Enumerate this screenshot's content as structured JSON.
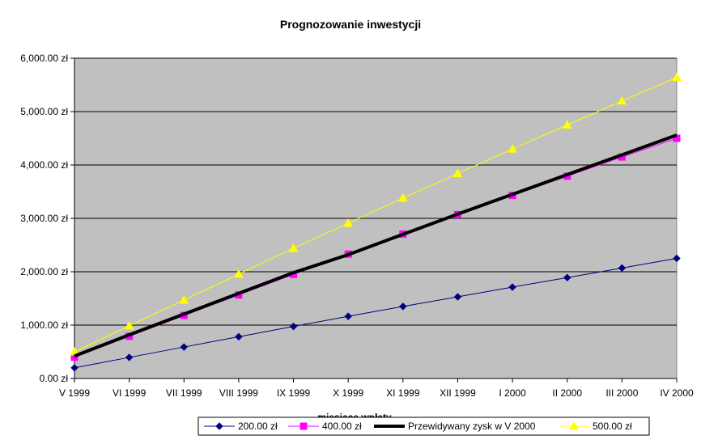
{
  "chart_data": {
    "type": "line",
    "title": "Prognozowanie inwestycji",
    "xlabel": "miesiące wpłaty",
    "ylabel": "",
    "ylim": [
      0,
      6000
    ],
    "yticks": [
      "0.00 zł",
      "1,000.00 zł",
      "2,000.00 zł",
      "3,000.00 zł",
      "4,000.00 zł",
      "5,000.00 zł",
      "6,000.00 zł"
    ],
    "categories": [
      "V 1999",
      "VI 1999",
      "VII 1999",
      "VIII 1999",
      "IX 1999",
      "X 1999",
      "XI 1999",
      "XII 1999",
      "I 2000",
      "II 2000",
      "III 2000",
      "IV 2000"
    ],
    "grid": true,
    "plot_background": "#c0c0c0",
    "legend_position": "bottom",
    "series": [
      {
        "name": "200.00 zł",
        "color": "#000080",
        "marker": "diamond",
        "values": [
          200,
          395,
          590,
          782,
          975,
          1165,
          1350,
          1530,
          1712,
          1890,
          2070,
          2250
        ]
      },
      {
        "name": "400.00 zł",
        "color": "#ff00ff",
        "marker": "square",
        "values": [
          400,
          790,
          1180,
          1565,
          1950,
          2330,
          2705,
          3070,
          3430,
          3790,
          4150,
          4500
        ]
      },
      {
        "name": "Przewidywany zysk w V 2000",
        "color": "#000000",
        "marker": "none",
        "thick": true,
        "values": [
          420,
          818,
          1206,
          1594,
          1982,
          2320,
          2700,
          3080,
          3450,
          3820,
          4190,
          4560
        ]
      },
      {
        "name": "500.00 zł",
        "color": "#ffff00",
        "marker": "triangle",
        "values": [
          500,
          985,
          1470,
          1955,
          2440,
          2910,
          3380,
          3840,
          4300,
          4750,
          5200,
          5640
        ]
      }
    ]
  }
}
